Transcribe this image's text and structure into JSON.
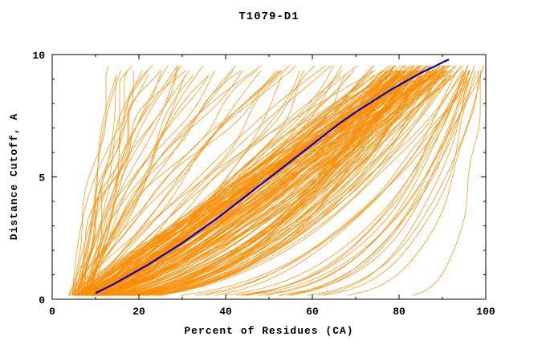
{
  "chart_data": {
    "type": "line",
    "title": "T1079-D1",
    "xlabel": "Percent of Residues (CA)",
    "ylabel": "Distance Cutoff, A",
    "xlim": [
      0,
      100
    ],
    "ylim": [
      0,
      10
    ],
    "x_ticks": [
      0,
      20,
      40,
      60,
      80,
      100
    ],
    "x_minor_step": 10,
    "y_ticks": [
      0,
      5,
      10
    ],
    "y_minor_step": 1,
    "grid": false,
    "legend": "none",
    "colors": {
      "predictions": "#ff8c00",
      "highlight": "#0000cd",
      "axis": "#000000",
      "background": "#ffffff"
    },
    "highlight_series": {
      "name": "selected-model",
      "points": [
        [
          10,
          0.25
        ],
        [
          14,
          0.6
        ],
        [
          18,
          1.0
        ],
        [
          22,
          1.4
        ],
        [
          26,
          1.85
        ],
        [
          30,
          2.3
        ],
        [
          34,
          2.8
        ],
        [
          38,
          3.3
        ],
        [
          42,
          3.85
        ],
        [
          46,
          4.4
        ],
        [
          50,
          4.95
        ],
        [
          54,
          5.5
        ],
        [
          58,
          6.05
        ],
        [
          62,
          6.6
        ],
        [
          66,
          7.15
        ],
        [
          70,
          7.65
        ],
        [
          74,
          8.1
        ],
        [
          78,
          8.55
        ],
        [
          82,
          8.95
        ],
        [
          85,
          9.25
        ],
        [
          88,
          9.5
        ],
        [
          90,
          9.68
        ],
        [
          91.5,
          9.8
        ]
      ]
    },
    "ensemble": {
      "name": "prediction-curves",
      "description": "cumulative percent of CA residues under each distance cutoff, one curve per predicted model",
      "seed": 20,
      "y_min": 0.15,
      "y_max": 9.7,
      "y_step": 0.2,
      "groups": [
        {
          "name": "poor",
          "count": 35,
          "x_start": [
            3,
            10
          ],
          "x_end": [
            14,
            60
          ],
          "exponent": [
            0.8,
            1.7
          ],
          "wobble": [
            0.5,
            2.5
          ]
        },
        {
          "name": "mid",
          "count": 25,
          "x_start": [
            3,
            10
          ],
          "x_end": [
            55,
            85
          ],
          "exponent": [
            0.6,
            1.3
          ],
          "wobble": [
            0.5,
            2.5
          ]
        },
        {
          "name": "main",
          "count": 150,
          "x_start": [
            3,
            10
          ],
          "x_end": [
            80,
            97
          ],
          "exponent": [
            0.38,
            1.1
          ],
          "wobble": [
            0.4,
            2.0
          ]
        },
        {
          "name": "excellent",
          "count": 22,
          "x_start": [
            5,
            40
          ],
          "x_end": [
            96,
            100
          ],
          "exponent": [
            0.06,
            0.5
          ],
          "wobble": [
            0.2,
            1.2
          ]
        }
      ]
    }
  }
}
